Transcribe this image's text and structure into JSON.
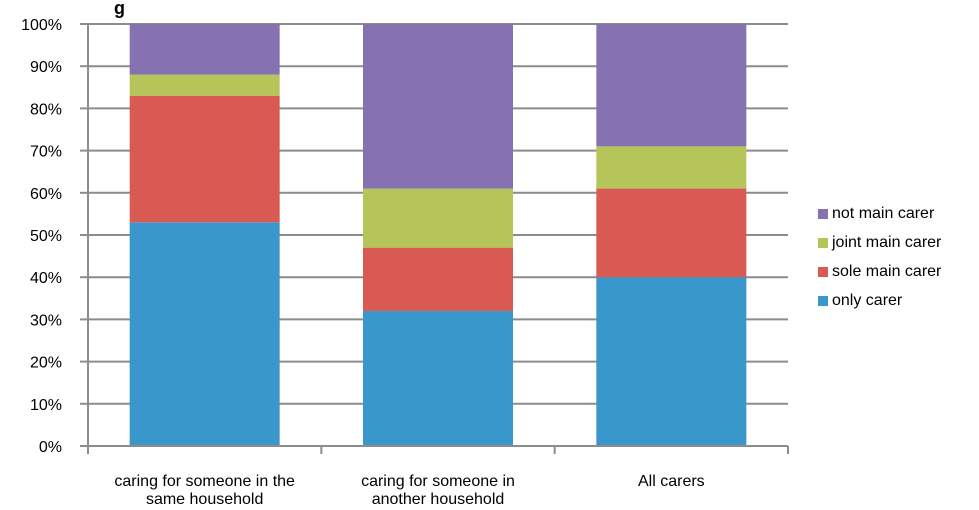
{
  "chart_data": {
    "type": "bar",
    "stacked": true,
    "percent": true,
    "title": "g",
    "xlabel": "",
    "ylabel": "",
    "ylim": [
      0,
      100
    ],
    "yticks": [
      "0%",
      "10%",
      "20%",
      "30%",
      "40%",
      "50%",
      "60%",
      "70%",
      "80%",
      "90%",
      "100%"
    ],
    "categories": [
      [
        "caring for someone in the",
        "same household"
      ],
      [
        "caring for someone in",
        "another household"
      ],
      [
        "All carers"
      ]
    ],
    "series": [
      {
        "name": "only carer",
        "color": "#3a97cc",
        "values": [
          53,
          32,
          40
        ]
      },
      {
        "name": "sole main carer",
        "color": "#d95a52",
        "values": [
          30,
          15,
          21
        ]
      },
      {
        "name": "joint main carer",
        "color": "#b5c55a",
        "values": [
          5,
          14,
          10
        ]
      },
      {
        "name": "not main carer",
        "color": "#8672b0",
        "values": [
          12,
          39,
          29
        ]
      }
    ],
    "legend_order": [
      "not main carer",
      "joint main carer",
      "sole main carer",
      "only carer"
    ],
    "legend_position": "right",
    "grid": true
  }
}
